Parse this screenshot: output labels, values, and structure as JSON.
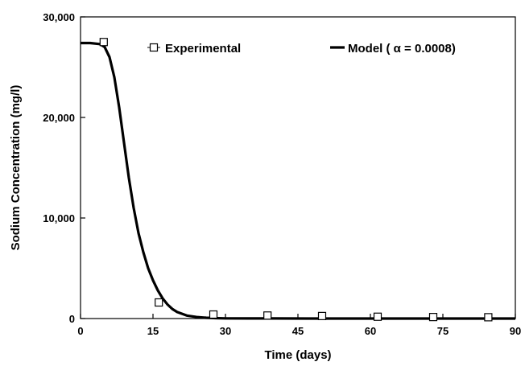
{
  "chart_data": {
    "type": "scatter",
    "xlabel": "Time (days)",
    "ylabel": "Sodium Concentration (mg/l)",
    "xlim": [
      0,
      90
    ],
    "ylim": [
      0,
      30000
    ],
    "x_ticks": [
      0,
      15,
      30,
      45,
      60,
      75,
      90
    ],
    "x_tick_labels": [
      "0",
      "15",
      "30",
      "45",
      "60",
      "75",
      "90"
    ],
    "y_ticks": [
      0,
      10000,
      20000,
      30000
    ],
    "y_tick_labels": [
      "0",
      "10,000",
      "20,000",
      "30,000"
    ],
    "grid": false,
    "legend_position": "top",
    "series": [
      {
        "name": "Experimental",
        "kind": "markers",
        "marker": "open-square",
        "color": "#000000",
        "x": [
          4.8,
          16.2,
          27.5,
          38.7,
          50.0,
          61.5,
          73.0,
          84.4
        ],
        "y": [
          27500,
          1600,
          400,
          300,
          250,
          180,
          150,
          130
        ]
      },
      {
        "name": "Model ( α = 0.0008)",
        "kind": "line",
        "color": "#000000",
        "x": [
          0,
          2,
          4,
          5,
          6,
          7,
          8,
          9,
          10,
          11,
          12,
          13,
          14,
          15,
          16,
          17,
          18,
          19,
          20,
          22,
          24,
          26,
          28,
          30,
          35,
          40,
          50,
          60,
          70,
          80,
          90
        ],
        "y": [
          27400,
          27400,
          27300,
          27000,
          26000,
          24000,
          21000,
          17500,
          14000,
          11000,
          8500,
          6600,
          5000,
          3800,
          2800,
          2000,
          1400,
          950,
          650,
          300,
          150,
          80,
          40,
          20,
          10,
          5,
          3,
          2,
          1,
          1,
          1
        ]
      }
    ]
  }
}
